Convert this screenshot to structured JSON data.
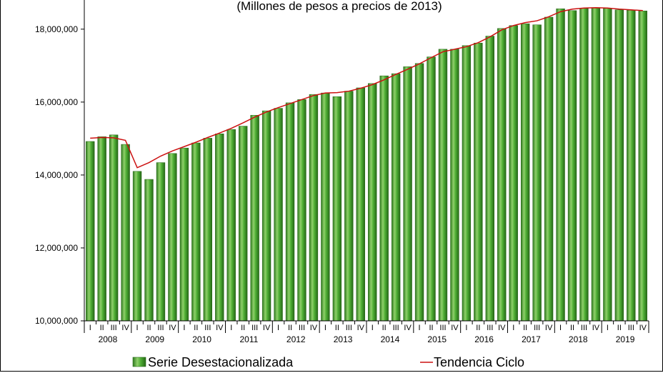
{
  "chart_data": {
    "type": "bar",
    "subtitle": "(Millones de pesos a precios de 2013)",
    "ylim": [
      10000000,
      18800000
    ],
    "yticks": [
      10000000,
      12000000,
      14000000,
      16000000,
      18000000
    ],
    "ytick_labels": [
      "10,000,000",
      "12,000,000",
      "14,000,000",
      "16,000,000",
      "18,000,000"
    ],
    "quarter_labels": [
      "I",
      "II",
      "III",
      "IV"
    ],
    "years": [
      "2008",
      "2009",
      "2010",
      "2011",
      "2012",
      "2013",
      "2014",
      "2015",
      "2016",
      "2017",
      "2018",
      "2019"
    ],
    "legend_position": "bottom",
    "grid": false,
    "series": [
      {
        "name": "Serie Desestacionalizada",
        "type": "bar",
        "color": "#3a9a2a",
        "values": [
          14920000,
          15050000,
          15100000,
          14840000,
          14100000,
          13880000,
          14340000,
          14590000,
          14740000,
          14880000,
          15010000,
          15130000,
          15250000,
          15340000,
          15640000,
          15760000,
          15830000,
          15980000,
          16070000,
          16210000,
          16250000,
          16150000,
          16300000,
          16390000,
          16510000,
          16720000,
          16780000,
          16970000,
          17060000,
          17240000,
          17450000,
          17450000,
          17550000,
          17620000,
          17810000,
          18020000,
          18100000,
          18150000,
          18120000,
          18330000,
          18560000,
          18510000,
          18570000,
          18590000,
          18570000,
          18530000,
          18520000,
          18500000
        ]
      },
      {
        "name": "Tendencia Ciclo",
        "type": "line",
        "color": "#cc1111",
        "values": [
          15010000,
          15030000,
          15020000,
          14950000,
          14200000,
          14340000,
          14520000,
          14660000,
          14780000,
          14900000,
          15030000,
          15150000,
          15280000,
          15430000,
          15590000,
          15730000,
          15850000,
          15960000,
          16070000,
          16180000,
          16250000,
          16260000,
          16300000,
          16380000,
          16480000,
          16610000,
          16760000,
          16900000,
          17050000,
          17220000,
          17380000,
          17450000,
          17520000,
          17630000,
          17790000,
          17980000,
          18100000,
          18180000,
          18230000,
          18340000,
          18480000,
          18550000,
          18580000,
          18590000,
          18580000,
          18550000,
          18530000,
          18510000
        ]
      }
    ]
  }
}
